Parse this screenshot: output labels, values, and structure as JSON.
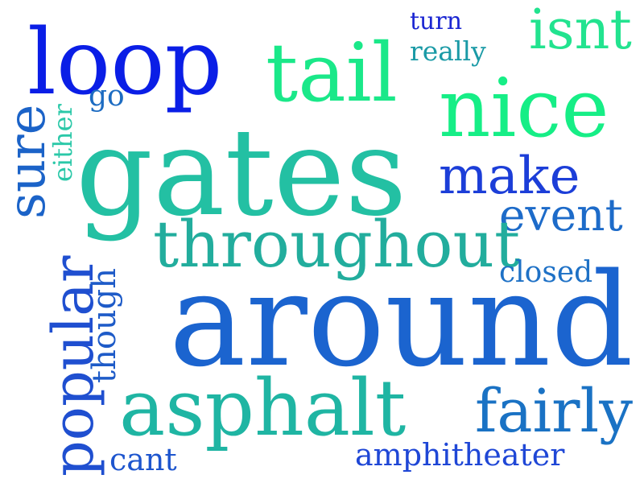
{
  "words": [
    {
      "id": "loop",
      "text": "loop",
      "color": "#0a1ee6"
    },
    {
      "id": "tail",
      "text": "tail",
      "color": "#1ae889"
    },
    {
      "id": "turn",
      "text": "turn",
      "color": "#1b26d2"
    },
    {
      "id": "really",
      "text": "really",
      "color": "#1a9aa6"
    },
    {
      "id": "isnt",
      "text": "isnt",
      "color": "#22e38f"
    },
    {
      "id": "nice",
      "text": "nice",
      "color": "#16ee86"
    },
    {
      "id": "go",
      "text": "go",
      "color": "#1d6cc2"
    },
    {
      "id": "sure",
      "text": "sure",
      "color": "#1b63c8"
    },
    {
      "id": "either",
      "text": "either",
      "color": "#2bc8a8"
    },
    {
      "id": "gates",
      "text": "gates",
      "color": "#23c0a3"
    },
    {
      "id": "make",
      "text": "make",
      "color": "#1c3ed8"
    },
    {
      "id": "event",
      "text": "event",
      "color": "#1d6bc9"
    },
    {
      "id": "throughout",
      "text": "throughout",
      "color": "#22ad9d"
    },
    {
      "id": "closed",
      "text": "closed",
      "color": "#1e71c6"
    },
    {
      "id": "popular",
      "text": "popular",
      "color": "#1f4fd0"
    },
    {
      "id": "though",
      "text": "though",
      "color": "#1e5bc8"
    },
    {
      "id": "around",
      "text": "around",
      "color": "#1b64cf"
    },
    {
      "id": "asphalt",
      "text": "asphalt",
      "color": "#1fb5a3"
    },
    {
      "id": "fairly",
      "text": "fairly",
      "color": "#1a72c4"
    },
    {
      "id": "cant",
      "text": "cant",
      "color": "#1d55ce"
    },
    {
      "id": "amphitheater",
      "text": "amphitheater",
      "color": "#1f47d6"
    }
  ]
}
